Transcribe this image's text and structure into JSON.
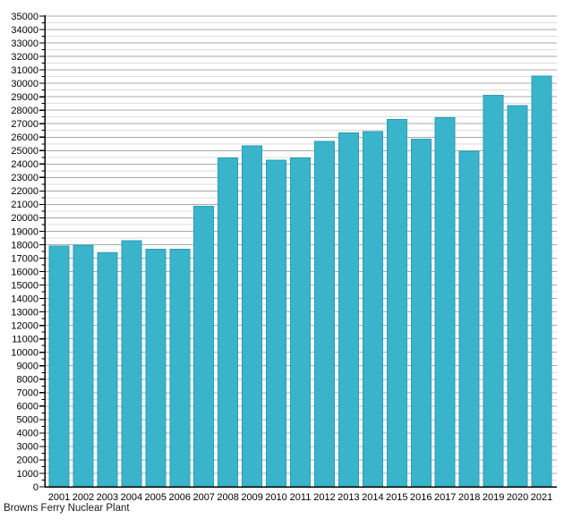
{
  "chart_data": {
    "type": "bar",
    "title": "Browns Ferry Nuclear Plant",
    "categories": [
      "2001",
      "2002",
      "2003",
      "2004",
      "2005",
      "2006",
      "2007",
      "2008",
      "2009",
      "2010",
      "2011",
      "2012",
      "2013",
      "2014",
      "2015",
      "2016",
      "2017",
      "2018",
      "2019",
      "2020",
      "2021"
    ],
    "values": [
      17900,
      17950,
      17400,
      18300,
      17650,
      17650,
      20850,
      24450,
      25350,
      24300,
      24450,
      25700,
      26300,
      26400,
      27300,
      25850,
      27450,
      24950,
      29100,
      28350,
      30550
    ],
    "xlabel": "",
    "ylabel": "",
    "ylim": [
      0,
      35000
    ],
    "y_tick_step": 1000,
    "y_minor_step": 500,
    "grid": "on",
    "legend": "none",
    "colors": {
      "bar_fill": "#3ab4ca",
      "bar_border": "#2b9cb4",
      "major_grid": "#a8a8a8",
      "minor_grid": "#dcdcdc",
      "axis": "#000000",
      "text": "#000000"
    }
  }
}
